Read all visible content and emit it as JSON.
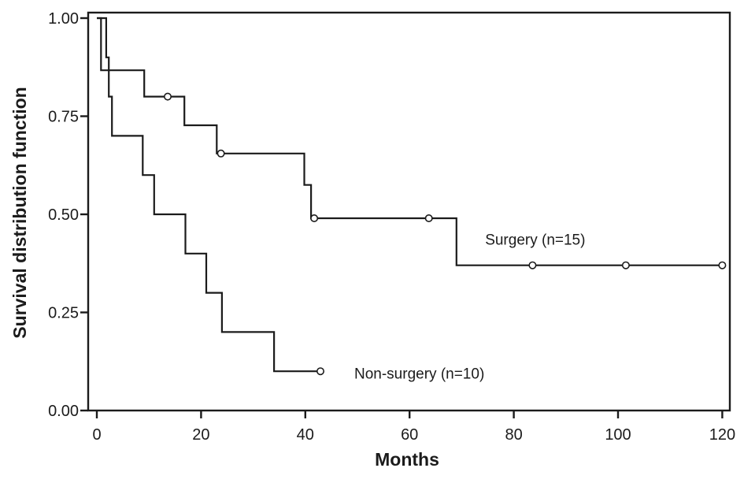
{
  "page": {
    "background": "#ffffff",
    "ink_color": "#1b1b1b"
  },
  "chart_data": {
    "type": "line",
    "subtype": "kaplan-meier-step",
    "title": "",
    "xlabel": "Months",
    "ylabel": "Survival distribution function",
    "grid": false,
    "legend_position": "inline-annotations",
    "x_axis": {
      "min": 0,
      "max": 120,
      "ticks": [
        0,
        20,
        40,
        60,
        80,
        100,
        120
      ],
      "tick_labels": [
        "0",
        "20",
        "40",
        "60",
        "80",
        "100",
        "120"
      ]
    },
    "y_axis": {
      "min": 0,
      "max": 1,
      "ticks": [
        0,
        0.25,
        0.5,
        0.75,
        1
      ],
      "tick_labels": [
        "0.00",
        "0.25",
        "0.50",
        "0.75",
        "1.00"
      ]
    },
    "censor_marker": "open-circle",
    "series": [
      {
        "name": "Surgery (n=15)",
        "label_anchor": {
          "month": 74.5,
          "value": 0.435
        },
        "start": [
          0,
          1.0
        ],
        "steps": [
          [
            0.8,
            0.867
          ],
          [
            9.1,
            0.8
          ],
          [
            16.8,
            0.727
          ],
          [
            23.0,
            0.655
          ],
          [
            39.8,
            0.575
          ],
          [
            41.1,
            0.49
          ],
          [
            69.0,
            0.37
          ]
        ],
        "end_month": 120,
        "censor_marks": [
          [
            13.6,
            0.8
          ],
          [
            23.8,
            0.655
          ],
          [
            41.7,
            0.49
          ],
          [
            63.7,
            0.49
          ],
          [
            83.6,
            0.37
          ],
          [
            101.5,
            0.37
          ],
          [
            120,
            0.37
          ]
        ]
      },
      {
        "name": "Non-surgery (n=10)",
        "label_anchor": {
          "month": 49.4,
          "value": 0.093
        },
        "start": [
          0,
          1.0
        ],
        "steps": [
          [
            1.8,
            0.9
          ],
          [
            2.3,
            0.8
          ],
          [
            2.9,
            0.7
          ],
          [
            8.8,
            0.6
          ],
          [
            11.0,
            0.5
          ],
          [
            17.0,
            0.4
          ],
          [
            21.0,
            0.3
          ],
          [
            24.0,
            0.2
          ],
          [
            34.0,
            0.1
          ]
        ],
        "end_month": 42.9,
        "censor_marks": [
          [
            42.9,
            0.1
          ]
        ]
      }
    ]
  }
}
